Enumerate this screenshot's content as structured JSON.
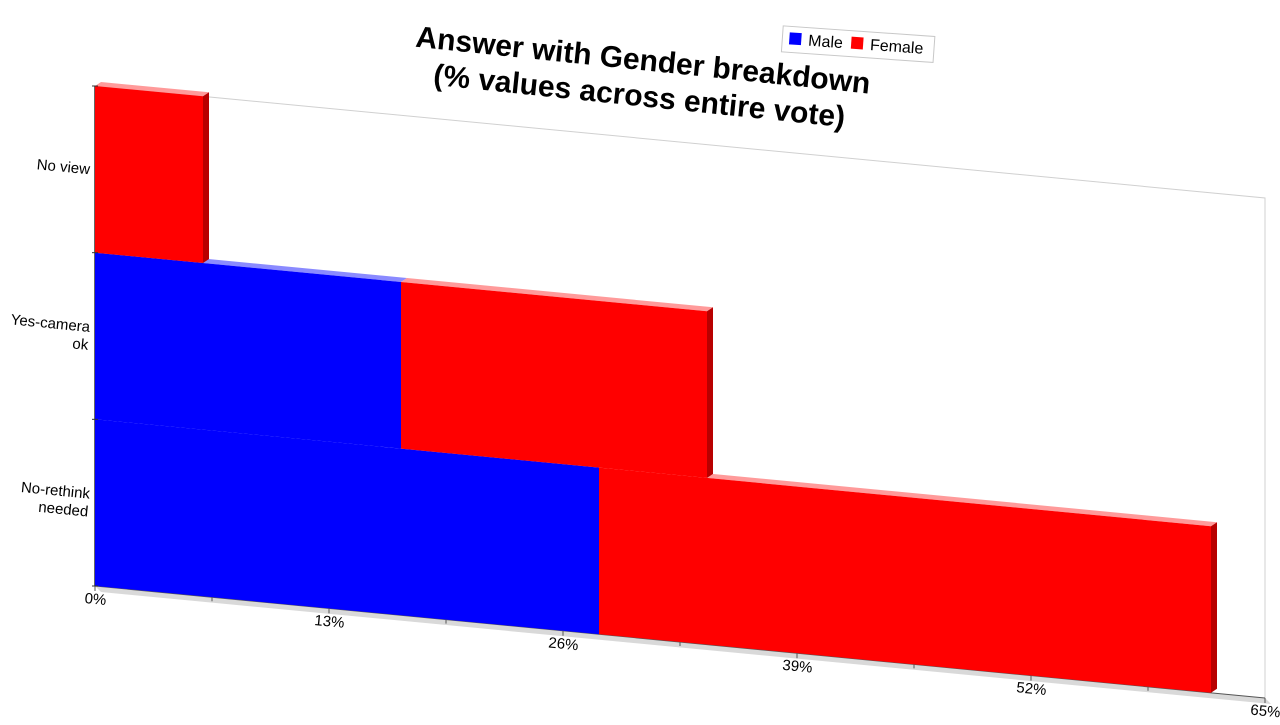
{
  "chart_data": {
    "type": "bar",
    "orientation": "horizontal",
    "stacked": true,
    "projection": "3d-perspective",
    "title": [
      "Answer with Gender breakdown",
      "(% values across entire vote)"
    ],
    "categories": [
      "No-rethink needed",
      "Yes-camera ok",
      "No view"
    ],
    "category_lines": [
      [
        "No-rethink",
        "needed"
      ],
      [
        "Yes-camera",
        "ok"
      ],
      [
        "No view"
      ]
    ],
    "series": [
      {
        "name": "Male",
        "color": "#0000ff",
        "values": [
          28,
          17,
          0
        ]
      },
      {
        "name": "Female",
        "color": "#ff0000",
        "values": [
          34,
          17,
          6
        ]
      }
    ],
    "xlim": [
      0,
      65
    ],
    "ticks": [
      0,
      13,
      26,
      39,
      52,
      65
    ],
    "tick_labels": [
      "0%",
      "13%",
      "26%",
      "39%",
      "52%",
      "65%"
    ],
    "legend": {
      "position": "top-right",
      "items": [
        "Male",
        "Female"
      ]
    },
    "grid": false,
    "xlabel": "",
    "ylabel": ""
  }
}
